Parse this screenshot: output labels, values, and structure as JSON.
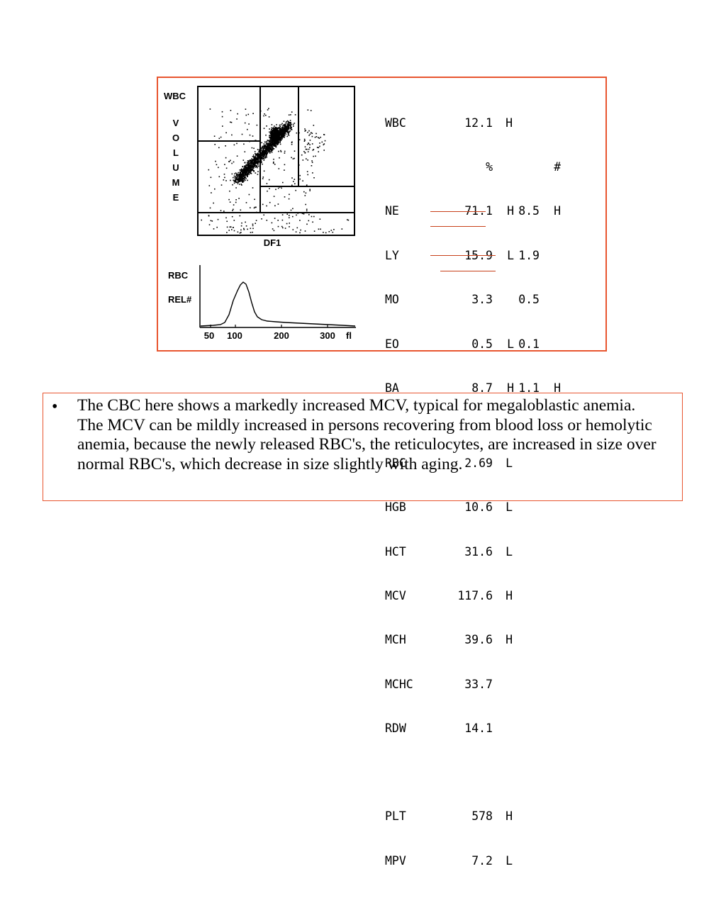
{
  "scatter": {
    "y_label_top": "WBC",
    "y_label_letters": [
      "V",
      "O",
      "L",
      "U",
      "M",
      "E"
    ],
    "x_label": "DF1"
  },
  "histogram": {
    "y_label_1": "RBC",
    "y_label_2": "REL#",
    "x_ticks": [
      "50",
      "100",
      "200",
      "300"
    ],
    "x_unit": "fl"
  },
  "report": {
    "wbc": {
      "name": "WBC",
      "value": "12.1",
      "flag": "H"
    },
    "header": {
      "pct": "%",
      "abs": "#"
    },
    "diff": [
      {
        "name": "NE",
        "pct": "71.1",
        "flag1": "H",
        "abs": "8.5",
        "flag2": "H"
      },
      {
        "name": "LY",
        "pct": "15.9",
        "flag1": "L",
        "abs": "1.9",
        "flag2": ""
      },
      {
        "name": "MO",
        "pct": "3.3",
        "flag1": "",
        "abs": "0.5",
        "flag2": ""
      },
      {
        "name": "EO",
        "pct": "0.5",
        "flag1": "L",
        "abs": "0.1",
        "flag2": ""
      },
      {
        "name": "BA",
        "pct": "8.7",
        "flag1": "H",
        "abs": "1.1",
        "flag2": "H"
      }
    ],
    "rbc": [
      {
        "name": "RBC",
        "value": "2.69",
        "flag": "L"
      },
      {
        "name": "HGB",
        "value": "10.6",
        "flag": "L"
      },
      {
        "name": "HCT",
        "value": "31.6",
        "flag": "L"
      },
      {
        "name": "MCV",
        "value": "117.6",
        "flag": "H"
      },
      {
        "name": "MCH",
        "value": "39.6",
        "flag": "H"
      },
      {
        "name": "MCHC",
        "value": "33.7",
        "flag": ""
      },
      {
        "name": "RDW",
        "value": "14.1",
        "flag": ""
      }
    ],
    "plt": [
      {
        "name": "PLT",
        "value": "578",
        "flag": "H"
      },
      {
        "name": "MPV",
        "value": "7.2",
        "flag": "L"
      }
    ]
  },
  "colors": {
    "frame": "#e8552f",
    "underline": "#c8401a"
  },
  "note": {
    "bullet": "•",
    "text": "The CBC here shows a markedly increased MCV, typical for megaloblastic anemia. The MCV can be mildly increased in persons recovering from blood loss or hemolytic anemia, because the newly released RBC's, the reticulocytes, are increased in size over normal RBC's, which decrease in size slightly with aging."
  }
}
